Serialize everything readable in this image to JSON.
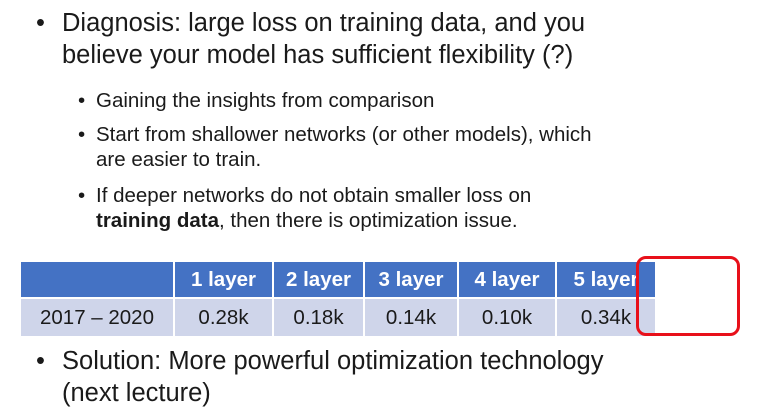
{
  "bullets": {
    "diagnosis": {
      "marker": "•",
      "line1": "Diagnosis: large loss on training data, and you",
      "line2": "believe your model has sufficient flexibility (?)"
    },
    "sub1": {
      "marker": "•",
      "line1": "Gaining the insights from comparison"
    },
    "sub2": {
      "marker": "•",
      "line1": "Start from shallower networks (or other models), which",
      "line2": "are easier to train."
    },
    "sub3": {
      "marker": "•",
      "line1": "If deeper networks do not obtain smaller loss on",
      "line2_bold": "training data",
      "line2_rest": ",  then there is optimization issue."
    },
    "solution": {
      "marker": "•",
      "line1": "Solution: More powerful optimization technology",
      "line2": "(next lecture)"
    }
  },
  "table": {
    "headers": [
      "",
      "1 layer",
      "2 layer",
      "3 layer",
      "4 layer",
      "5 layer"
    ],
    "row_label": "2017 – 2020",
    "values": [
      "0.28k",
      "0.18k",
      "0.14k",
      "0.10k",
      "0.34k"
    ]
  },
  "colors": {
    "header_bg": "#4472c4",
    "row_bg": "#cfd5ea",
    "highlight": "#e8101a"
  }
}
